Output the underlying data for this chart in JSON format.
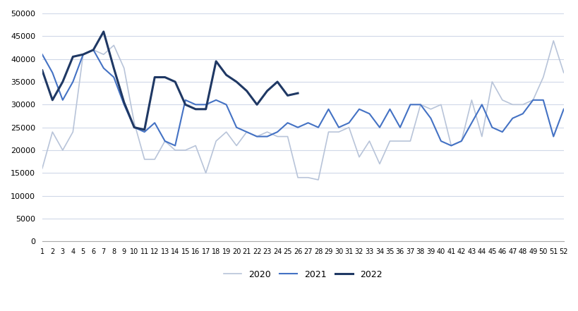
{
  "weeks": [
    1,
    2,
    3,
    4,
    5,
    6,
    7,
    8,
    9,
    10,
    11,
    12,
    13,
    14,
    15,
    16,
    17,
    18,
    19,
    20,
    21,
    22,
    23,
    24,
    25,
    26,
    27,
    28,
    29,
    30,
    31,
    32,
    33,
    34,
    35,
    36,
    37,
    38,
    39,
    40,
    41,
    42,
    43,
    44,
    45,
    46,
    47,
    48,
    49,
    50,
    51,
    52
  ],
  "y2020": [
    16000,
    24000,
    20000,
    24000,
    41000,
    42000,
    41000,
    43000,
    38000,
    26000,
    18000,
    18000,
    22000,
    20000,
    20000,
    21000,
    15000,
    22000,
    24000,
    21000,
    24000,
    23000,
    24000,
    23000,
    23000,
    14000,
    14000,
    13500,
    24000,
    24000,
    25000,
    18500,
    22000,
    17000,
    22000,
    22000,
    22000,
    30000,
    29000,
    30000,
    21000,
    22000,
    31000,
    23000,
    35000,
    31000,
    30000,
    30000,
    31000,
    36000,
    44000,
    37000
  ],
  "y2021": [
    41000,
    37000,
    31000,
    35000,
    41000,
    42000,
    38000,
    36000,
    30000,
    25000,
    24000,
    26000,
    22000,
    21000,
    31000,
    30000,
    30000,
    31000,
    30000,
    25000,
    24000,
    23000,
    23000,
    24000,
    26000,
    25000,
    26000,
    25000,
    29000,
    25000,
    26000,
    29000,
    28000,
    25000,
    29000,
    25000,
    30000,
    30000,
    27000,
    22000,
    21000,
    22000,
    26000,
    30000,
    25000,
    24000,
    27000,
    28000,
    31000,
    31000,
    23000,
    29000
  ],
  "y2022": [
    37500,
    31000,
    35000,
    40500,
    41000,
    42000,
    46000,
    38000,
    30500,
    25000,
    24500,
    36000,
    36000,
    35000,
    30000,
    29000,
    29000,
    39500,
    36500,
    35000,
    33000,
    30000,
    33000,
    35000,
    32000,
    32500,
    null,
    null,
    null,
    null,
    null,
    null,
    null,
    null,
    null,
    null,
    null,
    null,
    null,
    null,
    null,
    null,
    null,
    null,
    null,
    null,
    null,
    null,
    null,
    null,
    null,
    null
  ],
  "color_2020": "#b8c4d9",
  "color_2021": "#4472c4",
  "color_2022": "#1f3864",
  "title": "",
  "ylim": [
    0,
    50000
  ],
  "yticks": [
    0,
    5000,
    10000,
    15000,
    20000,
    25000,
    30000,
    35000,
    40000,
    45000,
    50000
  ],
  "legend_labels": [
    "2020",
    "2021",
    "2022"
  ],
  "background_color": "#ffffff",
  "grid_color": "#d0d8e8"
}
